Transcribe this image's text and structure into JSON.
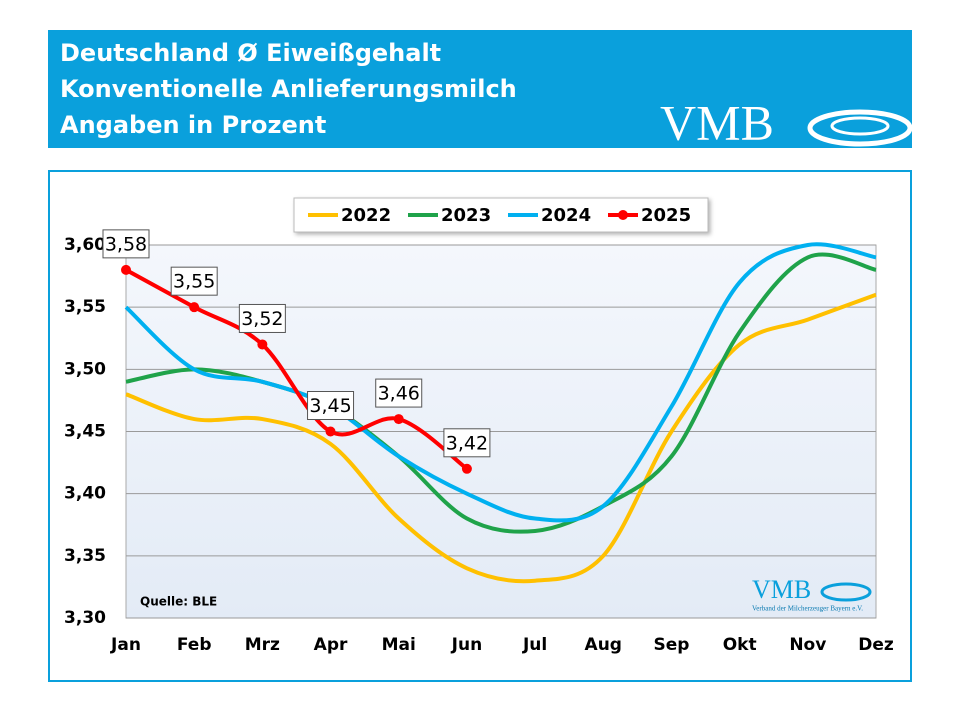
{
  "header": {
    "title_lines": [
      "Deutschland Ø Eiweißgehalt",
      "Konventionelle Anlieferungsmilch",
      "Angaben in Prozent"
    ],
    "logo": "VMB"
  },
  "chart_data": {
    "type": "line",
    "categories": [
      "Jan",
      "Feb",
      "Mrz",
      "Apr",
      "Mai",
      "Jun",
      "Jul",
      "Aug",
      "Sep",
      "Okt",
      "Nov",
      "Dez"
    ],
    "series": [
      {
        "name": "2022",
        "color": "#ffc000",
        "values": [
          3.48,
          3.46,
          3.46,
          3.44,
          3.38,
          3.34,
          3.33,
          3.35,
          3.45,
          3.52,
          3.54,
          3.56
        ]
      },
      {
        "name": "2023",
        "color": "#1fa34a",
        "values": [
          3.49,
          3.5,
          3.49,
          3.47,
          3.43,
          3.38,
          3.37,
          3.39,
          3.43,
          3.53,
          3.59,
          3.58
        ]
      },
      {
        "name": "2024",
        "color": "#00b0f0",
        "values": [
          3.55,
          3.5,
          3.49,
          3.47,
          3.43,
          3.4,
          3.38,
          3.39,
          3.47,
          3.57,
          3.6,
          3.59
        ]
      },
      {
        "name": "2025",
        "color": "#ff0000",
        "markers": true,
        "values": [
          3.58,
          3.55,
          3.52,
          3.45,
          3.46,
          3.42,
          null,
          null,
          null,
          null,
          null,
          null
        ],
        "value_labels": [
          "3,58",
          "3,55",
          "3,52",
          "3,45",
          "3,46",
          "3,42",
          null,
          null,
          null,
          null,
          null,
          null
        ]
      }
    ],
    "ylim": [
      3.3,
      3.6
    ],
    "yticks": [
      {
        "value": 3.3,
        "label": "3,30"
      },
      {
        "value": 3.35,
        "label": "3,35"
      },
      {
        "value": 3.4,
        "label": "3,40"
      },
      {
        "value": 3.45,
        "label": "3,45"
      },
      {
        "value": 3.5,
        "label": "3,50"
      },
      {
        "value": 3.55,
        "label": "3,55"
      },
      {
        "value": 3.6,
        "label": "3,60"
      }
    ],
    "grid": true,
    "legend": "top",
    "annotation": "Quelle: BLE",
    "logo": {
      "text": "VMB",
      "subtext": "Verband der Milcherzeuger Bayern e.V."
    }
  }
}
